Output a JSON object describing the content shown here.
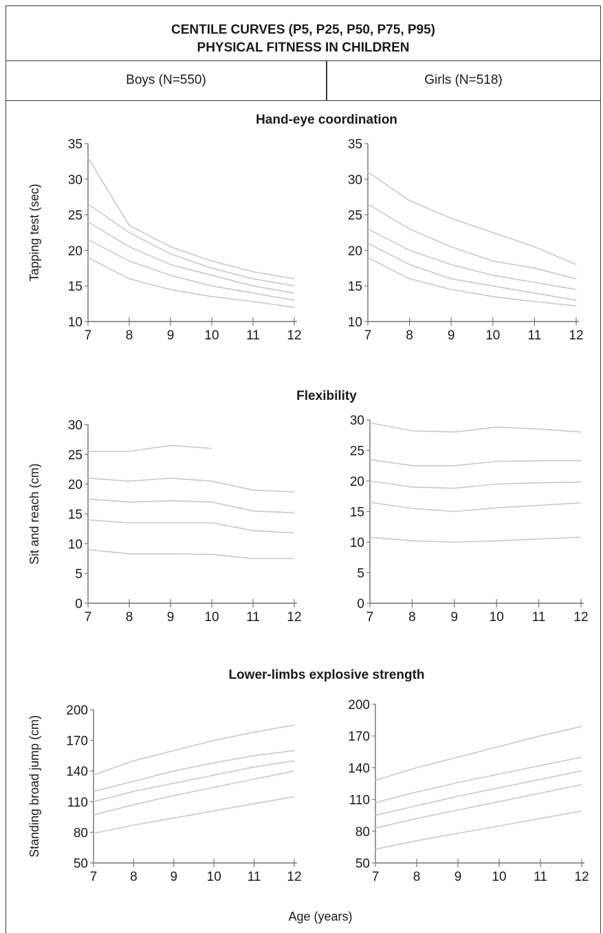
{
  "header": {
    "title_line1": "CENTILE CURVES (P5, P25, P50, P75, P95)",
    "title_line2": "PHYSICAL FITNESS IN CHILDREN"
  },
  "groups": {
    "boys": "Boys (N=550)",
    "girls": "Girls (N=518)"
  },
  "x_axis_label": "Age (years)",
  "chart_data": [
    {
      "type": "line",
      "section": "Hand-eye coordination",
      "panel": "Boys (N=550)",
      "ylabel": "Tapping test (sec)",
      "xlabel": "",
      "x": [
        7,
        8,
        9,
        10,
        11,
        12
      ],
      "xlim": [
        7,
        12
      ],
      "ylim": [
        10,
        35
      ],
      "yticks": [
        10,
        15,
        20,
        25,
        30,
        35
      ],
      "series": [
        {
          "values": [
            33,
            23.5,
            20.5,
            18.5,
            17,
            16
          ]
        },
        {
          "values": [
            26.5,
            22.5,
            19.5,
            17.5,
            16,
            15
          ]
        },
        {
          "values": [
            24,
            20.5,
            18,
            16.5,
            15,
            14
          ]
        },
        {
          "values": [
            21.5,
            18.5,
            16.5,
            15,
            14,
            13
          ]
        },
        {
          "values": [
            19,
            16,
            14.5,
            13.5,
            12.8,
            12
          ]
        }
      ]
    },
    {
      "type": "line",
      "section": "Hand-eye coordination",
      "panel": "Girls (N=518)",
      "ylabel": "",
      "xlabel": "",
      "x": [
        7,
        8,
        9,
        10,
        11,
        12
      ],
      "xlim": [
        7,
        12
      ],
      "ylim": [
        10,
        35
      ],
      "yticks": [
        10,
        15,
        20,
        25,
        30,
        35
      ],
      "series": [
        {
          "values": [
            31,
            27,
            24.5,
            22.5,
            20.5,
            18
          ]
        },
        {
          "values": [
            26.5,
            23,
            20.5,
            18.5,
            17.5,
            16
          ]
        },
        {
          "values": [
            23,
            20,
            18,
            16.5,
            15.5,
            14.5
          ]
        },
        {
          "values": [
            21,
            18,
            16,
            15,
            14,
            13
          ]
        },
        {
          "values": [
            19,
            16,
            14.5,
            13.5,
            12.8,
            12.2
          ]
        }
      ]
    },
    {
      "type": "line",
      "section": "Flexibility",
      "panel": "Boys (N=550)",
      "ylabel": "Sit and reach (cm)",
      "xlabel": "",
      "x": [
        7,
        8,
        9,
        10,
        11,
        12
      ],
      "xlim": [
        7,
        12
      ],
      "ylim": [
        0,
        30
      ],
      "yticks": [
        0,
        5,
        10,
        15,
        20,
        25,
        30
      ],
      "series": [
        {
          "x": [
            7,
            8,
            9,
            10
          ],
          "values": [
            25.5,
            25.5,
            26.5,
            26
          ]
        },
        {
          "values": [
            21,
            20.5,
            21,
            20.5,
            19,
            18.7
          ]
        },
        {
          "values": [
            17.5,
            17,
            17.2,
            17,
            15.5,
            15.2
          ]
        },
        {
          "values": [
            14,
            13.5,
            13.5,
            13.5,
            12.2,
            11.8
          ]
        },
        {
          "values": [
            9,
            8.3,
            8.3,
            8.2,
            7.5,
            7.5
          ]
        }
      ]
    },
    {
      "type": "line",
      "section": "Flexibility",
      "panel": "Girls (N=518)",
      "ylabel": "",
      "xlabel": "",
      "x": [
        7,
        8,
        9,
        10,
        11,
        12
      ],
      "xlim": [
        7,
        12
      ],
      "ylim": [
        0,
        30
      ],
      "yticks": [
        0,
        5,
        10,
        15,
        20,
        25,
        30
      ],
      "series": [
        {
          "values": [
            29.5,
            28.2,
            28,
            28.8,
            28.5,
            28
          ]
        },
        {
          "values": [
            23.5,
            22.5,
            22.5,
            23.2,
            23.3,
            23.3
          ]
        },
        {
          "values": [
            20,
            19,
            18.8,
            19.5,
            19.7,
            19.8
          ]
        },
        {
          "values": [
            16.5,
            15.5,
            15,
            15.6,
            16,
            16.4
          ]
        },
        {
          "values": [
            10.8,
            10.2,
            10,
            10.2,
            10.5,
            10.8
          ]
        }
      ]
    },
    {
      "type": "line",
      "section": "Lower-limbs explosive strength",
      "panel": "Boys (N=550)",
      "ylabel": "Standing broad jump (cm)",
      "xlabel": "",
      "x": [
        7,
        8,
        9,
        10,
        11,
        12
      ],
      "xlim": [
        7,
        12
      ],
      "ylim": [
        50,
        200
      ],
      "yticks": [
        50,
        80,
        110,
        140,
        170,
        200
      ],
      "series": [
        {
          "values": [
            136,
            150,
            160,
            170,
            178,
            185
          ]
        },
        {
          "values": [
            120,
            130,
            140,
            148,
            155,
            160
          ]
        },
        {
          "values": [
            110,
            120,
            128,
            136,
            144,
            150
          ]
        },
        {
          "values": [
            97,
            107,
            116,
            124,
            132,
            140
          ]
        },
        {
          "values": [
            79,
            87,
            94,
            101,
            108,
            115
          ]
        }
      ]
    },
    {
      "type": "line",
      "section": "Lower-limbs explosive strength",
      "panel": "Girls (N=518)",
      "ylabel": "",
      "xlabel": "Age (years)",
      "x": [
        7,
        8,
        9,
        10,
        11,
        12
      ],
      "xlim": [
        7,
        12
      ],
      "ylim": [
        50,
        200
      ],
      "yticks": [
        50,
        80,
        110,
        140,
        170,
        200
      ],
      "series": [
        {
          "values": [
            128,
            140,
            150,
            160,
            170,
            179
          ]
        },
        {
          "values": [
            107,
            117,
            126,
            134,
            142,
            150
          ]
        },
        {
          "values": [
            95,
            104,
            113,
            121,
            129,
            137
          ]
        },
        {
          "values": [
            83,
            92,
            100,
            108,
            116,
            124
          ]
        },
        {
          "values": [
            63,
            71,
            78,
            85,
            92,
            99
          ]
        }
      ]
    }
  ]
}
